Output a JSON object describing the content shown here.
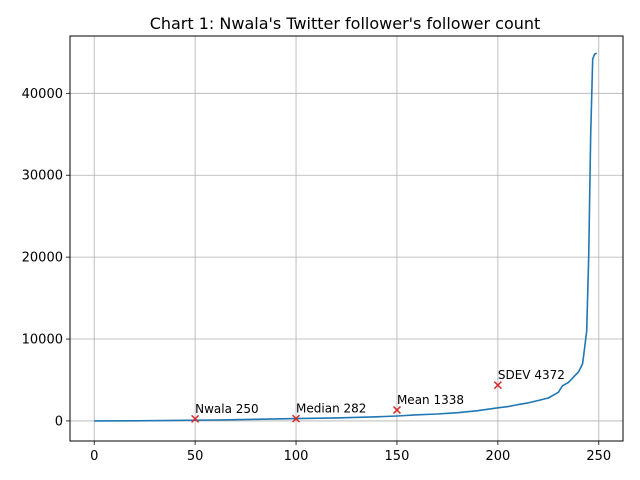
{
  "chart_data": {
    "type": "line",
    "title": "Chart 1: Nwala's Twitter follower's follower count",
    "xlabel": "",
    "ylabel": "",
    "xlim": [
      -12,
      262
    ],
    "ylim": [
      -2450,
      47000
    ],
    "grid": true,
    "xticks": [
      0,
      50,
      100,
      150,
      200,
      250
    ],
    "yticks": [
      0,
      10000,
      20000,
      30000,
      40000
    ],
    "series": [
      {
        "color": "#1f77b4",
        "x": [
          0,
          20,
          40,
          60,
          80,
          100,
          120,
          140,
          150,
          160,
          170,
          180,
          190,
          200,
          205,
          210,
          215,
          220,
          225,
          230,
          232,
          235,
          238,
          240,
          242,
          243,
          244,
          245,
          246,
          247,
          248,
          249
        ],
        "y": [
          0,
          20,
          60,
          120,
          200,
          282,
          370,
          500,
          600,
          750,
          850,
          1000,
          1250,
          1600,
          1750,
          2000,
          2200,
          2500,
          2800,
          3500,
          4300,
          4700,
          5500,
          6000,
          7000,
          9000,
          11000,
          20000,
          35000,
          44200,
          44800,
          44900
        ]
      }
    ],
    "markers": [
      {
        "x": 50,
        "y": 250,
        "label": "Nwala 250"
      },
      {
        "x": 100,
        "y": 282,
        "label": "Median 282"
      },
      {
        "x": 150,
        "y": 1338,
        "label": "Mean 1338"
      },
      {
        "x": 200,
        "y": 4372,
        "label": "SDEV 4372"
      }
    ],
    "colors": {
      "line": "#1f77b4",
      "marker": "#d62728",
      "grid": "#b0b0b0"
    }
  }
}
